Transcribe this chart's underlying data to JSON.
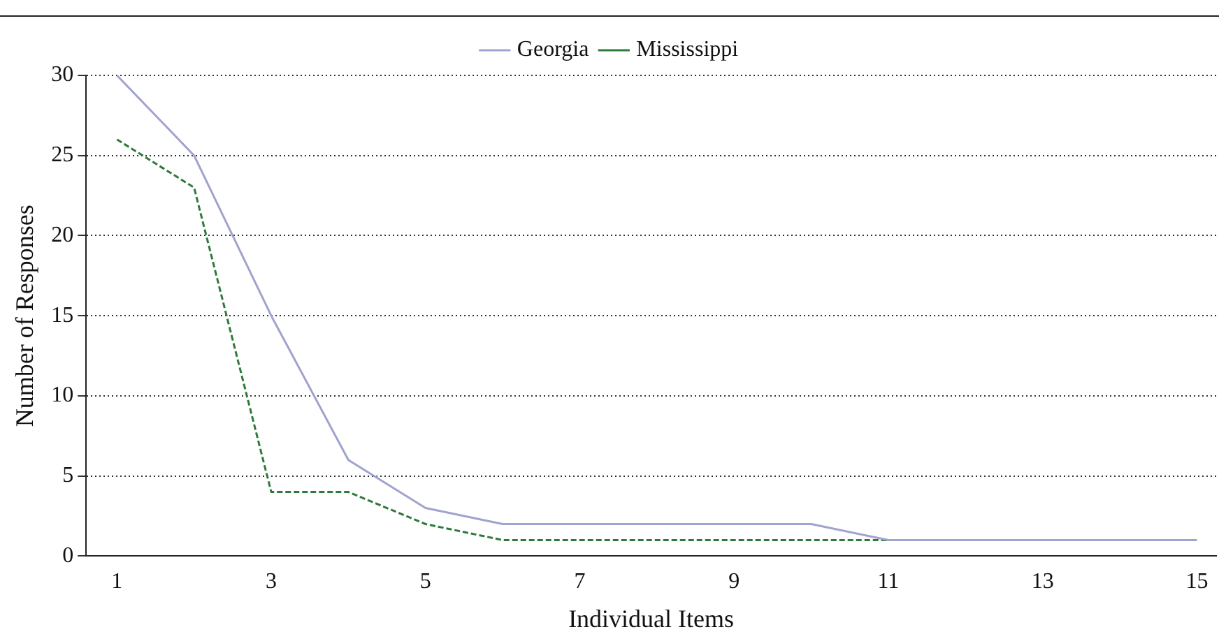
{
  "chart_data": {
    "type": "line",
    "xlabel": "Individual Items",
    "ylabel": "Number of Responses",
    "x": [
      1,
      2,
      3,
      4,
      5,
      6,
      7,
      8,
      9,
      10,
      11,
      12,
      13,
      14,
      15
    ],
    "series": [
      {
        "name": "Georgia",
        "color": "#a0a3cf",
        "line_style": "solid",
        "values": [
          30,
          25,
          15,
          6,
          3,
          2,
          2,
          2,
          2,
          2,
          1,
          1,
          1,
          1,
          1
        ]
      },
      {
        "name": "Mississippi",
        "color": "#2e7a3c",
        "line_style": "dashed",
        "values": [
          26,
          23,
          4,
          4,
          2,
          1,
          1,
          1,
          1,
          1,
          1,
          null,
          null,
          null,
          null
        ]
      }
    ],
    "xlim": [
      0.6,
      15.25
    ],
    "xticks": [
      1,
      3,
      5,
      7,
      9,
      11,
      13,
      15
    ],
    "ylim": [
      0,
      30
    ],
    "yticks": [
      0,
      5,
      10,
      15,
      20,
      25,
      30
    ],
    "grid": "y",
    "legend": "top",
    "marker": "none"
  }
}
